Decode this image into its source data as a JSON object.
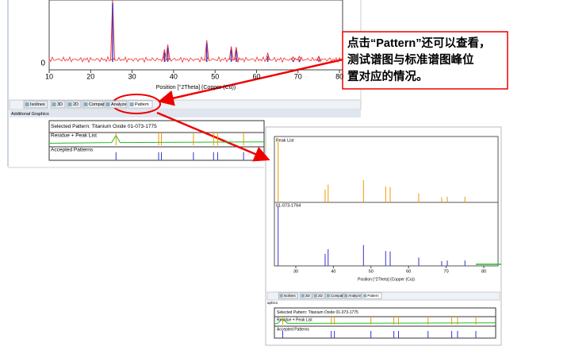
{
  "top_plot": {
    "y_label": "0",
    "xticks": [
      10,
      20,
      30,
      40,
      50,
      60,
      70,
      80
    ],
    "x_label": "Position [°2Theta] (Copper (Cu))",
    "peaks": [
      25.3,
      37.8,
      38.6,
      48.0,
      53.9,
      55.1,
      62.7,
      68.8,
      70.3,
      75.0
    ],
    "intensities": [
      100,
      20,
      28,
      35,
      25,
      24,
      14,
      8,
      9,
      9
    ]
  },
  "tabs": [
    "Isolines",
    "3D",
    "2D",
    "Compare",
    "Analyze",
    "Pattern"
  ],
  "panel_title": "Additional Graphics",
  "panel": {
    "selected": "Selected Pattern: Titanium Oxide  01-073-1775",
    "residue": "Residue + Peak List",
    "accepted": "Accepted Patterns"
  },
  "annotation": [
    "点击“Pattern”还可以查看，",
    "测试谱图与标准谱图峰位",
    "置对应的情况。"
  ],
  "zoom": {
    "peak_list": "Peak List",
    "reference": "01-073-1764",
    "xticks": [
      30,
      40,
      50,
      60,
      70,
      80
    ],
    "x_label": "Position [°2Theta] (Copper (Cu))",
    "panel_title": "aphics"
  }
}
